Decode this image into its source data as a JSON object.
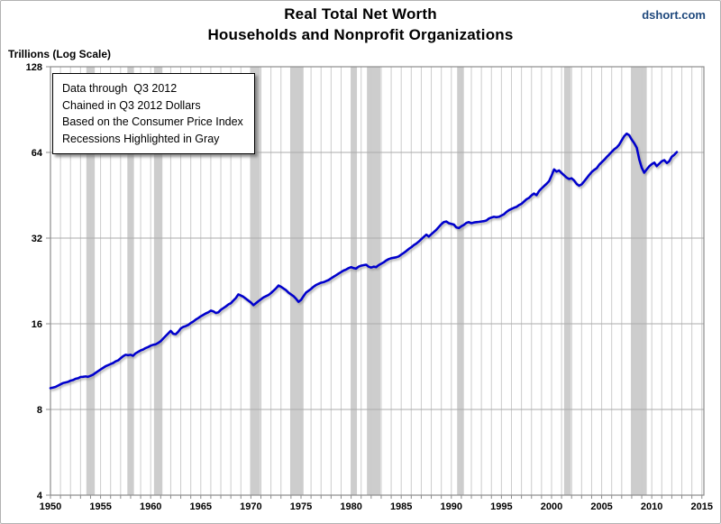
{
  "chart_data": {
    "type": "line",
    "title": "Real Total Net Worth",
    "subtitle": "Households and Nonprofit Organizations",
    "watermark": "dshort.com",
    "y_axis_label": "Trillions (Log Scale)",
    "note_lines": [
      "Data through  Q3 2012",
      "Chained in Q3 2012 Dollars",
      "Based on the Consumer Price Index",
      "Recessions Highlighted in Gray"
    ],
    "series_name": "Real total net worth of households and nonprofit organizations (trillions of chained Q3 2012 dollars)",
    "x_ticks": [
      1950,
      1955,
      1960,
      1965,
      1970,
      1975,
      1980,
      1985,
      1990,
      1995,
      2000,
      2005,
      2010,
      2015
    ],
    "y_ticks": [
      4,
      8,
      16,
      32,
      64,
      128
    ],
    "xlim": [
      1950,
      2015.2
    ],
    "ylim": [
      4,
      128
    ],
    "y_scale": "log2",
    "grid": "vertical gridline every year; horizontal gridline at each power of 2",
    "legend_position": "top-left note box",
    "recessions": [
      [
        1953.58,
        1954.42
      ],
      [
        1957.67,
        1958.33
      ],
      [
        1960.33,
        1961.17
      ],
      [
        1969.92,
        1970.92
      ],
      [
        1973.92,
        1975.25
      ],
      [
        1980.0,
        1980.58
      ],
      [
        1981.58,
        1982.92
      ],
      [
        1990.58,
        1991.25
      ],
      [
        2001.25,
        2001.92
      ],
      [
        2007.92,
        2009.5
      ]
    ],
    "points": {
      "start_year": 1950,
      "interval_years": 0.25,
      "end_label": "Q3 2012",
      "values": [
        9.5,
        9.55,
        9.6,
        9.7,
        9.8,
        9.9,
        9.95,
        10.0,
        10.1,
        10.15,
        10.25,
        10.3,
        10.4,
        10.42,
        10.45,
        10.42,
        10.5,
        10.6,
        10.75,
        10.9,
        11.05,
        11.2,
        11.35,
        11.45,
        11.55,
        11.65,
        11.8,
        11.9,
        12.1,
        12.3,
        12.45,
        12.4,
        12.45,
        12.35,
        12.6,
        12.75,
        12.9,
        13.0,
        13.15,
        13.25,
        13.4,
        13.5,
        13.55,
        13.7,
        13.9,
        14.2,
        14.5,
        14.8,
        15.1,
        14.75,
        14.7,
        15.0,
        15.4,
        15.6,
        15.7,
        15.85,
        16.1,
        16.3,
        16.55,
        16.75,
        17.0,
        17.2,
        17.4,
        17.55,
        17.8,
        17.7,
        17.45,
        17.55,
        17.9,
        18.15,
        18.4,
        18.7,
        18.9,
        19.3,
        19.7,
        20.3,
        20.1,
        19.9,
        19.6,
        19.3,
        19.0,
        18.6,
        18.9,
        19.2,
        19.5,
        19.8,
        20.0,
        20.2,
        20.5,
        20.9,
        21.3,
        21.8,
        21.6,
        21.3,
        21.0,
        20.6,
        20.3,
        20.0,
        19.6,
        19.1,
        19.4,
        20.0,
        20.6,
        20.9,
        21.2,
        21.6,
        21.9,
        22.1,
        22.3,
        22.4,
        22.6,
        22.8,
        23.1,
        23.4,
        23.7,
        24.0,
        24.3,
        24.6,
        24.8,
        25.1,
        25.3,
        25.1,
        25.0,
        25.4,
        25.6,
        25.7,
        25.8,
        25.4,
        25.2,
        25.4,
        25.3,
        25.7,
        26.0,
        26.3,
        26.7,
        27.0,
        27.2,
        27.3,
        27.4,
        27.6,
        28.0,
        28.4,
        28.8,
        29.3,
        29.7,
        30.2,
        30.6,
        31.1,
        31.7,
        32.3,
        32.9,
        32.4,
        33.0,
        33.6,
        34.2,
        35.0,
        35.8,
        36.4,
        36.6,
        36.1,
        35.9,
        35.7,
        34.9,
        34.7,
        35.2,
        35.6,
        36.2,
        36.4,
        36.1,
        36.3,
        36.4,
        36.5,
        36.6,
        36.7,
        36.9,
        37.5,
        37.8,
        38.0,
        37.9,
        38.0,
        38.4,
        38.8,
        39.5,
        40.1,
        40.5,
        40.9,
        41.2,
        41.8,
        42.2,
        43.0,
        43.8,
        44.3,
        45.2,
        45.9,
        45.3,
        46.8,
        47.8,
        48.7,
        49.6,
        50.7,
        53.0,
        55.8,
        54.8,
        55.3,
        54.2,
        53.2,
        52.2,
        51.6,
        51.9,
        51.0,
        49.6,
        48.9,
        49.4,
        50.6,
        51.9,
        53.3,
        54.6,
        55.5,
        56.3,
        57.9,
        59.1,
        60.3,
        61.6,
        62.9,
        64.3,
        65.6,
        66.6,
        68.1,
        70.5,
        73.0,
        74.5,
        73.5,
        71.0,
        69.0,
        66.5,
        60.5,
        56.5,
        54.3,
        55.8,
        57.2,
        58.2,
        58.9,
        57.3,
        58.4,
        59.6,
        60.1,
        58.7,
        59.6,
        61.8,
        62.8,
        64.2
      ]
    },
    "colors": {
      "line": "#0000CC",
      "recession": "#CDCDCD",
      "grid_vertical": "#CCCCCC",
      "grid_horizontal": "#ABABAB",
      "axis_border": "#8C8C8C",
      "watermark": "#1F497D",
      "text": "#000000",
      "background": "#FFFFFF"
    }
  }
}
